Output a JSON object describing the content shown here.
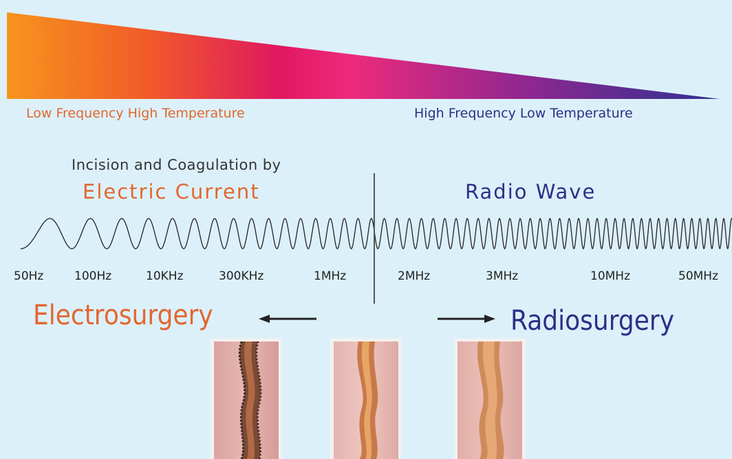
{
  "top_gradient": {
    "colors": [
      "#f7941d",
      "#f15a29",
      "#e0185f",
      "#ee2a7b",
      "#92278f",
      "#2e3192"
    ]
  },
  "captions": {
    "low": "Low Frequency High Temperature",
    "high": "High Frequency Low Temperature"
  },
  "headings": {
    "intro": "Incision and Coagulation by",
    "electric": "Electric Current",
    "radio": "Radio Wave"
  },
  "frequencies": [
    "50Hz",
    "100Hz",
    "10KHz",
    "300KHz",
    "1MHz",
    "2MHz",
    "3MHz",
    "10MHz",
    "50MHz"
  ],
  "labels": {
    "electrosurgery": "Electrosurgery",
    "radiosurgery": "Radiosurgery"
  },
  "colors": {
    "orange_text": "#e2672f",
    "blue_text": "#2c2f86",
    "background": "#dcf0fa"
  }
}
